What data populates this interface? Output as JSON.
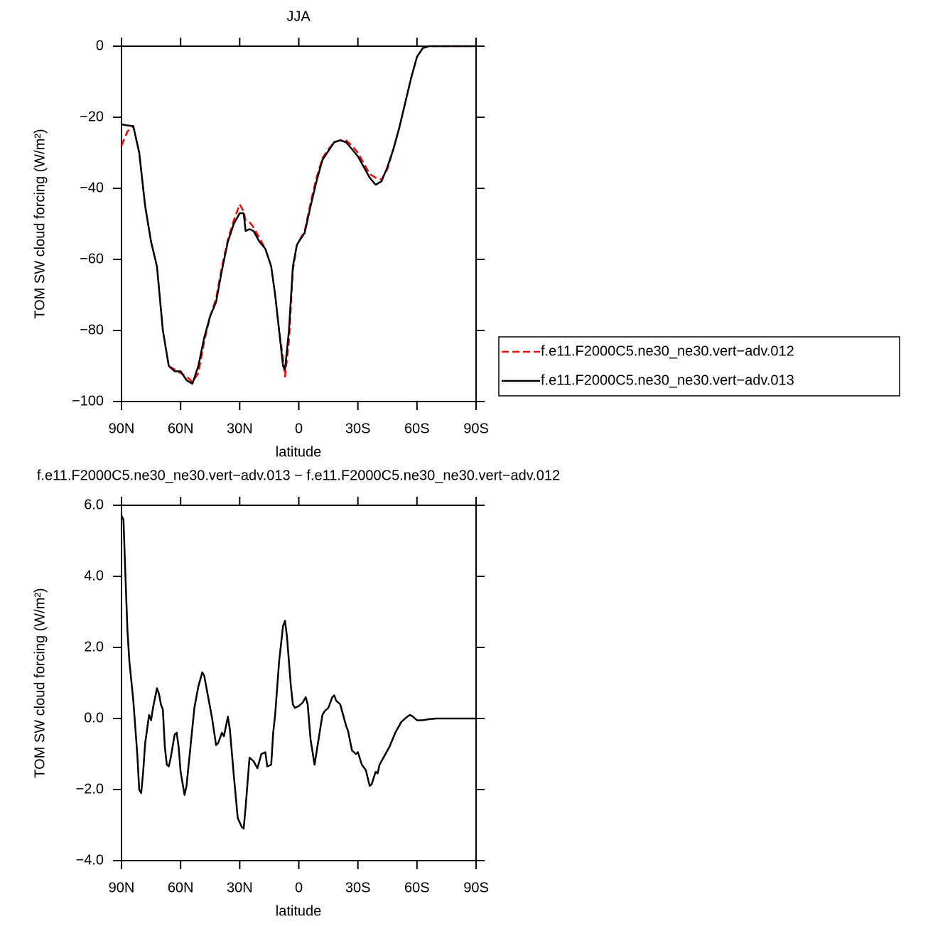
{
  "chart_data": [
    {
      "type": "line",
      "title": "JJA",
      "xlabel": "latitude",
      "ylabel": "TOM SW cloud forcing (W/m²)",
      "x": [
        90,
        87,
        84,
        81,
        78,
        75,
        72,
        69,
        66,
        63,
        60,
        57,
        54,
        51,
        48,
        45,
        42,
        39,
        36,
        33,
        30,
        28,
        27,
        25,
        23,
        20,
        17,
        14,
        12,
        10,
        8,
        7,
        5,
        3,
        1,
        0,
        -3,
        -6,
        -9,
        -12,
        -15,
        -18,
        -21,
        -24,
        -27,
        -30,
        -33,
        -36,
        -39,
        -42,
        -45,
        -48,
        -51,
        -54,
        -57,
        -60,
        -63,
        -66,
        -70,
        -80,
        -90
      ],
      "series": [
        {
          "name": "f.e11.F2000C5.ne30_ne30.vert−adv.012",
          "color": "#ff0000",
          "line_style": "dashed",
          "values": [
            -28,
            -24,
            -22.5,
            -30,
            -45,
            -55,
            -62,
            -80,
            -90,
            -91,
            -92,
            -93,
            -94.5,
            -92,
            -83,
            -76,
            -71,
            -62,
            -54.5,
            -49,
            -44.5,
            -46.5,
            -49,
            -49.5,
            -51,
            -54,
            -57,
            -62,
            -70,
            -80,
            -88,
            -93,
            -83,
            -63,
            -56,
            -55,
            -52,
            -44,
            -37,
            -31.5,
            -29,
            -27,
            -26.5,
            -26.5,
            -28,
            -30,
            -33,
            -36,
            -37,
            -37.5,
            -34.5,
            -29,
            -23,
            -16,
            -9,
            -3,
            -0.5,
            0,
            0,
            0,
            0
          ]
        },
        {
          "name": "f.e11.F2000C5.ne30_ne30.vert−adv.013",
          "color": "#000000",
          "line_style": "solid",
          "values": [
            -22,
            -22.3,
            -22.5,
            -30,
            -45,
            -55,
            -62,
            -80,
            -90,
            -91.5,
            -91.5,
            -94,
            -95,
            -90,
            -82,
            -76,
            -72,
            -63,
            -55,
            -50,
            -47,
            -47,
            -52,
            -51.5,
            -52,
            -55,
            -57,
            -62,
            -70,
            -80,
            -90,
            -91,
            -80,
            -62,
            -56,
            -55,
            -52.5,
            -45,
            -38,
            -32,
            -29.5,
            -27,
            -26.5,
            -27,
            -29,
            -31,
            -34,
            -37,
            -39,
            -38,
            -34,
            -29,
            -23,
            -16,
            -9,
            -3,
            -0.5,
            0,
            0,
            0,
            0
          ]
        }
      ],
      "xlim": [
        90,
        -90
      ],
      "xticks": [
        {
          "value": 90,
          "label": "90N"
        },
        {
          "value": 60,
          "label": "60N"
        },
        {
          "value": 30,
          "label": "30N"
        },
        0,
        {
          "value": -30,
          "label": "30S"
        },
        {
          "value": -60,
          "label": "60S"
        },
        {
          "value": -90,
          "label": "90S"
        }
      ],
      "ylim": [
        -100,
        0
      ],
      "yticks": [
        0,
        {
          "value": -20,
          "label": "−20"
        },
        {
          "value": -40,
          "label": "−40"
        },
        {
          "value": -60,
          "label": "−60"
        },
        {
          "value": -80,
          "label": "−80"
        },
        {
          "value": -100,
          "label": "−100"
        }
      ],
      "legend": "right"
    },
    {
      "type": "line",
      "title": "f.e11.F2000C5.ne30_ne30.vert−adv.013 − f.e11.F2000C5.ne30_ne30.vert−adv.012",
      "xlabel": "latitude",
      "ylabel": "TOM SW cloud forcing (W/m²)",
      "x": [
        90,
        89,
        88,
        87,
        86,
        84,
        82,
        81,
        80,
        79,
        78,
        76,
        75,
        74,
        72,
        71,
        70,
        69,
        68,
        67,
        66,
        65,
        63,
        62,
        61,
        60,
        58,
        57,
        55,
        53,
        51,
        49,
        48,
        46,
        44,
        42,
        41,
        39,
        38,
        36,
        35,
        33,
        31,
        29,
        28,
        27,
        25,
        23,
        21,
        19,
        17,
        16,
        14,
        13,
        12,
        10,
        8,
        7,
        6,
        4,
        3,
        2,
        0,
        -2,
        -3.5,
        -4.5,
        -6,
        -8,
        -10,
        -12,
        -13,
        -15,
        -17,
        -18,
        -19,
        -21,
        -22.5,
        -24,
        -25,
        -27,
        -29,
        -30,
        -32,
        -34,
        -36,
        -37,
        -39,
        -40,
        -41,
        -44,
        -46,
        -49,
        -52,
        -55,
        -56.5,
        -58,
        -60,
        -63,
        -66,
        -70,
        -90
      ],
      "color": "#000000",
      "values": [
        5.7,
        5.6,
        4,
        2.5,
        1.6,
        0.5,
        -1,
        -2,
        -2.1,
        -1.5,
        -0.7,
        0.1,
        -0.05,
        0.3,
        0.85,
        0.7,
        0.4,
        0.25,
        -0.8,
        -1.3,
        -1.35,
        -1.1,
        -0.45,
        -0.4,
        -0.8,
        -1.5,
        -2.15,
        -1.9,
        -0.8,
        0.3,
        0.9,
        1.3,
        1.2,
        0.6,
        0,
        -0.75,
        -0.7,
        -0.4,
        -0.5,
        0.05,
        -0.3,
        -1.6,
        -2.8,
        -3.05,
        -3.1,
        -2.5,
        -1.1,
        -1.2,
        -1.4,
        -1.0,
        -0.95,
        -1.35,
        -1.3,
        -0.4,
        0.1,
        1.6,
        2.6,
        2.75,
        2.3,
        0.9,
        0.4,
        0.3,
        0.35,
        0.45,
        0.6,
        0.4,
        -0.6,
        -1.3,
        -0.6,
        0.1,
        0.2,
        0.3,
        0.6,
        0.65,
        0.5,
        0.4,
        0.1,
        -0.2,
        -0.35,
        -0.9,
        -1.0,
        -0.95,
        -1.3,
        -1.45,
        -1.9,
        -1.85,
        -1.5,
        -1.55,
        -1.3,
        -1.0,
        -0.8,
        -0.4,
        -0.1,
        0.05,
        0.1,
        0.05,
        -0.05,
        -0.05,
        -0.02,
        0,
        0
      ],
      "xlim": [
        90,
        -90
      ],
      "xticks": [
        {
          "value": 90,
          "label": "90N"
        },
        {
          "value": 60,
          "label": "60N"
        },
        {
          "value": 30,
          "label": "30N"
        },
        0,
        {
          "value": -30,
          "label": "30S"
        },
        {
          "value": -60,
          "label": "60S"
        },
        {
          "value": -90,
          "label": "90S"
        }
      ],
      "ylim": [
        -4,
        6
      ],
      "yticks": [
        {
          "value": 6,
          "label": "6.0"
        },
        {
          "value": 4,
          "label": "4.0"
        },
        {
          "value": 2,
          "label": "2.0"
        },
        {
          "value": 0,
          "label": "0.0"
        },
        {
          "value": -2,
          "label": "−2.0"
        },
        {
          "value": -4,
          "label": "−4.0"
        }
      ]
    }
  ]
}
